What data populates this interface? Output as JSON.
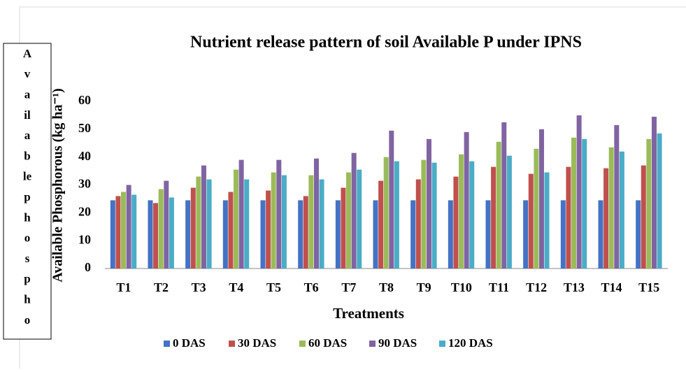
{
  "chart_data": {
    "type": "bar",
    "title": "Nutrient release pattern of soil Available P under IPNS",
    "x_label": "Treatments",
    "y_label": "Available Phosphorous (kg ha⁻¹)",
    "annotation_lines": [
      "A",
      "v",
      "a",
      "il",
      "a",
      "b",
      "le",
      "p",
      "h",
      "o",
      "s",
      "p",
      "h",
      "o"
    ],
    "categories": [
      "T1",
      "T2",
      "T3",
      "T4",
      "T5",
      "T6",
      "T7",
      "T8",
      "T9",
      "T10",
      "T11",
      "T12",
      "T13",
      "T14",
      "T15"
    ],
    "series": [
      {
        "name": "0 DAS",
        "color": "#4472c4",
        "values": [
          24.5,
          24.5,
          24.5,
          24.5,
          24.5,
          24.5,
          24.5,
          24.5,
          24.5,
          24.5,
          24.5,
          24.5,
          24.5,
          24.5,
          24.5
        ]
      },
      {
        "name": "30 DAS",
        "color": "#c0504d",
        "values": [
          26,
          23.5,
          29,
          27.5,
          28,
          26,
          29,
          31.5,
          32,
          33,
          36.5,
          34,
          36.5,
          36,
          37
        ]
      },
      {
        "name": "60 DAS",
        "color": "#9bbb59",
        "values": [
          27.5,
          28.5,
          33,
          35.5,
          34.5,
          33.5,
          34.5,
          40,
          39,
          41,
          45.5,
          43,
          47,
          43.5,
          46.5
        ]
      },
      {
        "name": "90 DAS",
        "color": "#8064a2",
        "values": [
          30,
          31.5,
          37,
          39,
          39,
          39.5,
          41.5,
          49.5,
          46.5,
          49,
          52.5,
          50,
          55,
          51.5,
          54.5
        ]
      },
      {
        "name": "120 DAS",
        "color": "#4bacc6",
        "values": [
          26.5,
          25.5,
          32,
          32,
          33.5,
          32,
          35.5,
          38.5,
          38,
          38.5,
          40.5,
          34.5,
          46.5,
          42,
          48.5
        ]
      }
    ],
    "ylim": [
      0,
      60
    ],
    "yticks": [
      0,
      10,
      20,
      30,
      40,
      50,
      60
    ],
    "grid": false,
    "legend": "bottom"
  }
}
